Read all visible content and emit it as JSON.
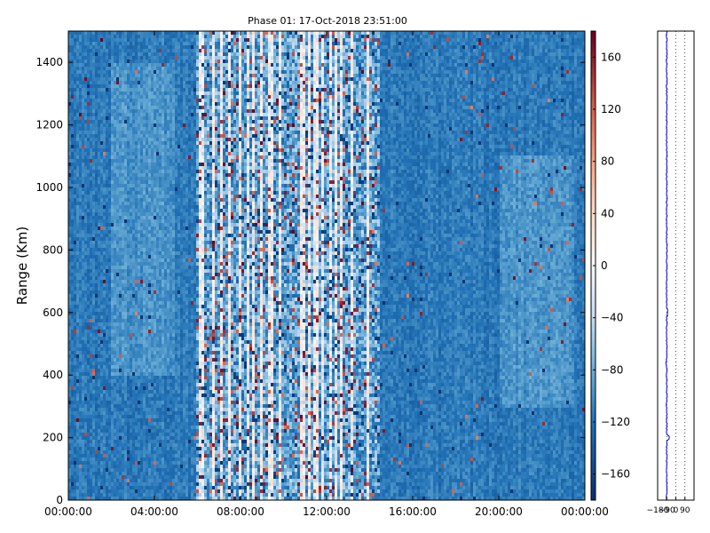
{
  "chart_data": [
    {
      "type": "heatmap",
      "title": "Phase 01: 17-Oct-2018 23:51:00",
      "xlabel": "",
      "ylabel": "Range (Km)",
      "xlim": [
        "00:00:00",
        "24:00:00"
      ],
      "ylim": [
        0,
        1500
      ],
      "x_ticks": [
        "00:00:00",
        "04:00:00",
        "08:00:00",
        "12:00:00",
        "16:00:00",
        "20:00:00",
        "00:00:00"
      ],
      "y_ticks": [
        0,
        200,
        400,
        600,
        800,
        1000,
        1200,
        1400
      ],
      "colorbar": {
        "range": [
          -180,
          180
        ],
        "ticks": [
          -160,
          -120,
          -80,
          -40,
          0,
          40,
          80,
          120,
          160
        ],
        "colormap": "RdBu_r",
        "colors": {
          "low": "#08306b",
          "mid": "#f7f7f7",
          "high": "#67001f"
        }
      },
      "dominant_value": -115,
      "noisy_band": {
        "start": "06:00:00",
        "end": "14:30:00"
      }
    },
    {
      "type": "line",
      "xlabel": "",
      "ylabel": "",
      "x_ticks": [
        -180,
        -90,
        0,
        90
      ],
      "xlim": [
        -180,
        180
      ],
      "ylim": [
        0,
        1500
      ],
      "grid": true,
      "line_color": "#0000cc",
      "profile_center": -90
    }
  ]
}
